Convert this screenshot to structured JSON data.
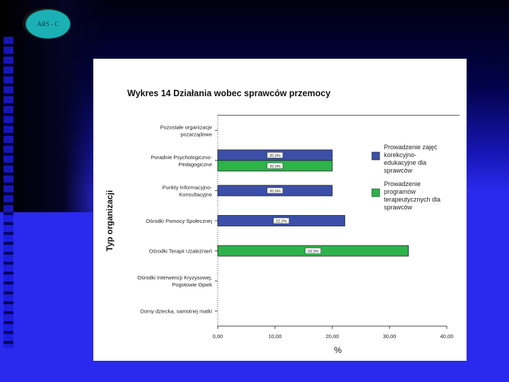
{
  "logo": {
    "text": "ARS - C"
  },
  "chart_data": {
    "type": "bar",
    "orientation": "horizontal",
    "title": "Wykres 14 Działania wobec sprawców przemocy",
    "ylabel": "Typ organizacji",
    "xlabel": "%",
    "xlim": [
      0,
      40
    ],
    "xticks": [
      "0,00",
      "10,00",
      "20,00",
      "30,00",
      "40,00"
    ],
    "grid": false,
    "legend_position": "right",
    "categories": [
      [
        "Pozostałe organizacje",
        "pozarządowe"
      ],
      [
        "Poradnie Psychologiczno-",
        "Pedagogiczne"
      ],
      [
        "Punkty Informacyjno-",
        "Konsultacyjne"
      ],
      [
        "Ośrodki Pomocy Społecznej"
      ],
      [
        "Ośrodki Terapii Uzależnień"
      ],
      [
        "Ośrodki Interwencji Kryzysowej,",
        "Pogotowie Opiek"
      ],
      [
        "Domy dziecka, samotnej matki"
      ]
    ],
    "series": [
      {
        "name": "Prowadzenie zajęć korekcyjno-edukacyjne dla sprawców",
        "legend_lines": [
          "Prowadzenie zajęć",
          "korekcyjno-",
          "edukacyjne dla",
          "sprawców"
        ],
        "color": "#3b4fa8",
        "values": [
          null,
          20.0,
          20.0,
          22.2,
          null,
          null,
          null
        ],
        "labels": [
          "",
          "20,0%",
          "20,0%",
          "22,2%",
          "",
          "",
          ""
        ]
      },
      {
        "name": "Prowadzenie programów terapeutycznych dla sprawców",
        "legend_lines": [
          "Prowadzenie",
          "programów",
          "terapeutycznych dla",
          "sprawców"
        ],
        "color": "#2db34a",
        "values": [
          null,
          20.0,
          null,
          null,
          33.3,
          null,
          null
        ],
        "labels": [
          "",
          "20,0%",
          "",
          "",
          "33,3%",
          "",
          ""
        ]
      }
    ]
  }
}
